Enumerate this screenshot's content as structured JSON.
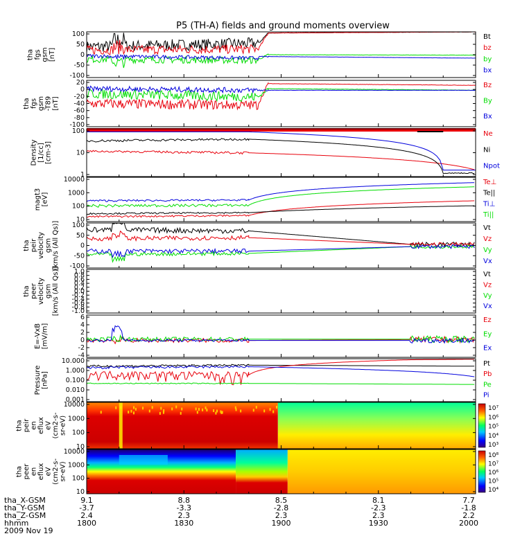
{
  "title": "P5 (TH-A) fields and ground moments overview",
  "date": "2009 Nov 19",
  "orbit": {
    "rows": [
      {
        "label": "tha_X-GSM",
        "values": [
          "9.1",
          "8.8",
          "8.5",
          "8.1",
          "7.7"
        ]
      },
      {
        "label": "tha_Y-GSM",
        "values": [
          "-3.7",
          "-3.3",
          "-2.8",
          "-2.3",
          "-1.8"
        ]
      },
      {
        "label": "tha_Z-GSM",
        "values": [
          "2.4",
          "2.3",
          "2.3",
          "2.3",
          "2.2"
        ]
      },
      {
        "label": "hhmm",
        "values": [
          "1800",
          "1830",
          "1900",
          "1930",
          "2000"
        ]
      }
    ]
  },
  "colors": {
    "black": "#000000",
    "red": "#e8000b",
    "green": "#00dd00",
    "blue": "#0000dd"
  },
  "chart_data": [
    {
      "id": "fgs",
      "type": "line",
      "ylabel": [
        "tha",
        "fgs",
        "gsm",
        "[nT]"
      ],
      "yticks": [
        "100",
        "50",
        "0",
        "-50",
        "-100"
      ],
      "ylim": [
        -100,
        100
      ],
      "series": [
        {
          "name": "Bt"
        },
        {
          "name": "bz"
        },
        {
          "name": "by"
        },
        {
          "name": "bx"
        }
      ],
      "approx_levels": {
        "before_1855": {
          "Bt": 40,
          "bz": 25,
          "by": -20,
          "bx": -10
        },
        "after_1855": {
          "Bt": 95,
          "bz": 95,
          "by": 0,
          "bx": -10
        }
      }
    },
    {
      "id": "fgs-t89",
      "type": "line",
      "ylabel": [
        "tha",
        "fgs",
        "gsm",
        "-T89",
        "[nT]"
      ],
      "yticks": [
        "20",
        "0",
        "-20",
        "-40",
        "-60",
        "-80",
        "-100"
      ],
      "ylim": [
        -110,
        30
      ],
      "series": [
        {
          "name": "Bz"
        },
        {
          "name": "By"
        },
        {
          "name": "Bx"
        }
      ],
      "approx_levels": {
        "before_1855": {
          "Bz": -45,
          "By": -20,
          "Bx": 0
        },
        "after_1855": {
          "Bz": 20,
          "By": 5,
          "Bx": 0
        }
      }
    },
    {
      "id": "density",
      "type": "line",
      "log": true,
      "ylabel": [
        "Density",
        "[1/cc]",
        "[cm-3]"
      ],
      "yticks": [
        "100",
        "10",
        "1"
      ],
      "ylim": [
        0.5,
        300
      ],
      "series": [
        {
          "name": "Ne"
        },
        {
          "name": "Ni"
        },
        {
          "name": "Npot"
        }
      ]
    },
    {
      "id": "temperature",
      "type": "line",
      "log": true,
      "ylabel": [
        "magt3",
        "[eV]"
      ],
      "yticks": [
        "10000",
        "1000",
        "100",
        "10"
      ],
      "ylim": [
        8,
        12000
      ],
      "series": [
        {
          "name": "Te⊥"
        },
        {
          "name": "Te||"
        },
        {
          "name": "Ti⊥"
        },
        {
          "name": "Ti||"
        }
      ]
    },
    {
      "id": "ion-velocity",
      "type": "line",
      "ylabel": [
        "tha",
        "peir",
        "velocity",
        "gsm",
        "[km/s (All Qs)]"
      ],
      "yticks": [
        "100",
        "50",
        "0",
        "-50",
        "-100"
      ],
      "ylim": [
        -100,
        100
      ],
      "series": [
        {
          "name": "Vt"
        },
        {
          "name": "Vz"
        },
        {
          "name": "Vy"
        },
        {
          "name": "Vx"
        }
      ]
    },
    {
      "id": "electron-velocity",
      "type": "line",
      "ylabel": [
        "tha",
        "peer",
        "velocity",
        "gsm",
        "[km/s (All Qs)]"
      ],
      "yticks": [
        "1.0",
        "0.8",
        "0.6",
        "0.4",
        "0.2",
        "0.0",
        "-0.2",
        "-0.4",
        "-0.6",
        "-0.8",
        "-1.0"
      ],
      "ylim": [
        -1,
        1
      ],
      "series": [
        {
          "name": "Vt"
        },
        {
          "name": "Vz"
        },
        {
          "name": "Vy"
        },
        {
          "name": "Vx"
        }
      ]
    },
    {
      "id": "efield",
      "type": "line",
      "ylabel": [
        "E=-VxB",
        "[mV/m]"
      ],
      "yticks": [
        "6",
        "4",
        "2",
        "0",
        "-2",
        "-4"
      ],
      "ylim": [
        -4,
        6
      ],
      "series": [
        {
          "name": "Ez"
        },
        {
          "name": "Ey"
        },
        {
          "name": "Ex"
        }
      ]
    },
    {
      "id": "pressure",
      "type": "line",
      "log": true,
      "ylabel": [
        "Pressure",
        "[nPa]"
      ],
      "yticks": [
        "10.000",
        "1.000",
        "0.100",
        "0.010",
        "0.001"
      ],
      "ylim": [
        0.001,
        10
      ],
      "series": [
        {
          "name": "Pt"
        },
        {
          "name": "Pb"
        },
        {
          "name": "Pe"
        },
        {
          "name": "Pi"
        }
      ]
    },
    {
      "id": "ion-spectrogram",
      "type": "heatmap",
      "ylabel": [
        "tha",
        "peir",
        "en",
        "eflux",
        "eV",
        "(cm2-s-",
        "sr-eV)"
      ],
      "yticks": [
        "10000",
        "1000",
        "100",
        "10"
      ],
      "colorbar": [
        "10⁷",
        "10⁶",
        "10⁵",
        "10⁴",
        "10³"
      ]
    },
    {
      "id": "electron-spectrogram",
      "type": "heatmap",
      "ylabel": [
        "tha",
        "peer",
        "en",
        "eflux",
        "eV",
        "(cm2-s-",
        "sr-eV)"
      ],
      "yticks": [
        "10000",
        "1000",
        "100",
        "10"
      ],
      "colorbar": [
        "10⁸",
        "10⁷",
        "10⁶",
        "10⁵",
        "10⁴"
      ]
    }
  ]
}
